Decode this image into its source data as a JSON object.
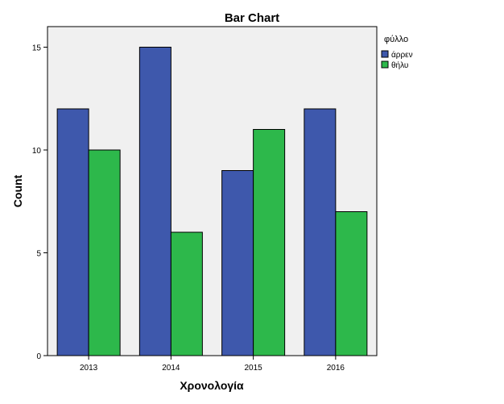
{
  "chart_data": {
    "type": "bar",
    "title": "Bar Chart",
    "xlabel": "Χρονολογία",
    "ylabel": "Count",
    "categories": [
      "2013",
      "2014",
      "2015",
      "2016"
    ],
    "series": [
      {
        "name": "άρρεν",
        "values": [
          12,
          15,
          9,
          12
        ],
        "color": "#3e58ac"
      },
      {
        "name": "θήλυ",
        "values": [
          10,
          6,
          11,
          7
        ],
        "color": "#2db84b"
      }
    ],
    "ylim": [
      0,
      16
    ],
    "yticks": [
      0,
      5,
      10,
      15
    ],
    "legend": {
      "title": "φύλλο",
      "position": "right"
    },
    "plot_background": "#f0f0f0",
    "grid": false
  }
}
